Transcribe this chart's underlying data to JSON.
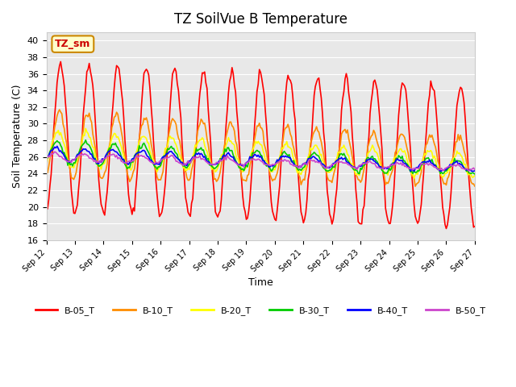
{
  "title": "TZ SoilVue B Temperature",
  "xlabel": "Time",
  "ylabel": "Soil Temperature (C)",
  "ylim": [
    16,
    41
  ],
  "yticks": [
    16,
    18,
    20,
    22,
    24,
    26,
    28,
    30,
    32,
    34,
    36,
    38,
    40
  ],
  "bg_color": "#e8e8e8",
  "fig_color": "#ffffff",
  "station_label": "TZ_sm",
  "xtick_labels": [
    "Sep 12",
    "Sep 13",
    "Sep 14",
    "Sep 15",
    "Sep 16",
    "Sep 17",
    "Sep 18",
    "Sep 19",
    "Sep 20",
    "Sep 21",
    "Sep 22",
    "Sep 23",
    "Sep 24",
    "Sep 25",
    "Sep 26",
    "Sep 27"
  ],
  "series_names": [
    "B-05_T",
    "B-10_T",
    "B-20_T",
    "B-30_T",
    "B-40_T",
    "B-50_T"
  ],
  "series_colors": [
    "#ff0000",
    "#ff8c00",
    "#ffff00",
    "#00cc00",
    "#0000ff",
    "#cc44cc"
  ],
  "series_linewidths": [
    1.2,
    1.2,
    1.2,
    1.2,
    1.2,
    1.2
  ]
}
